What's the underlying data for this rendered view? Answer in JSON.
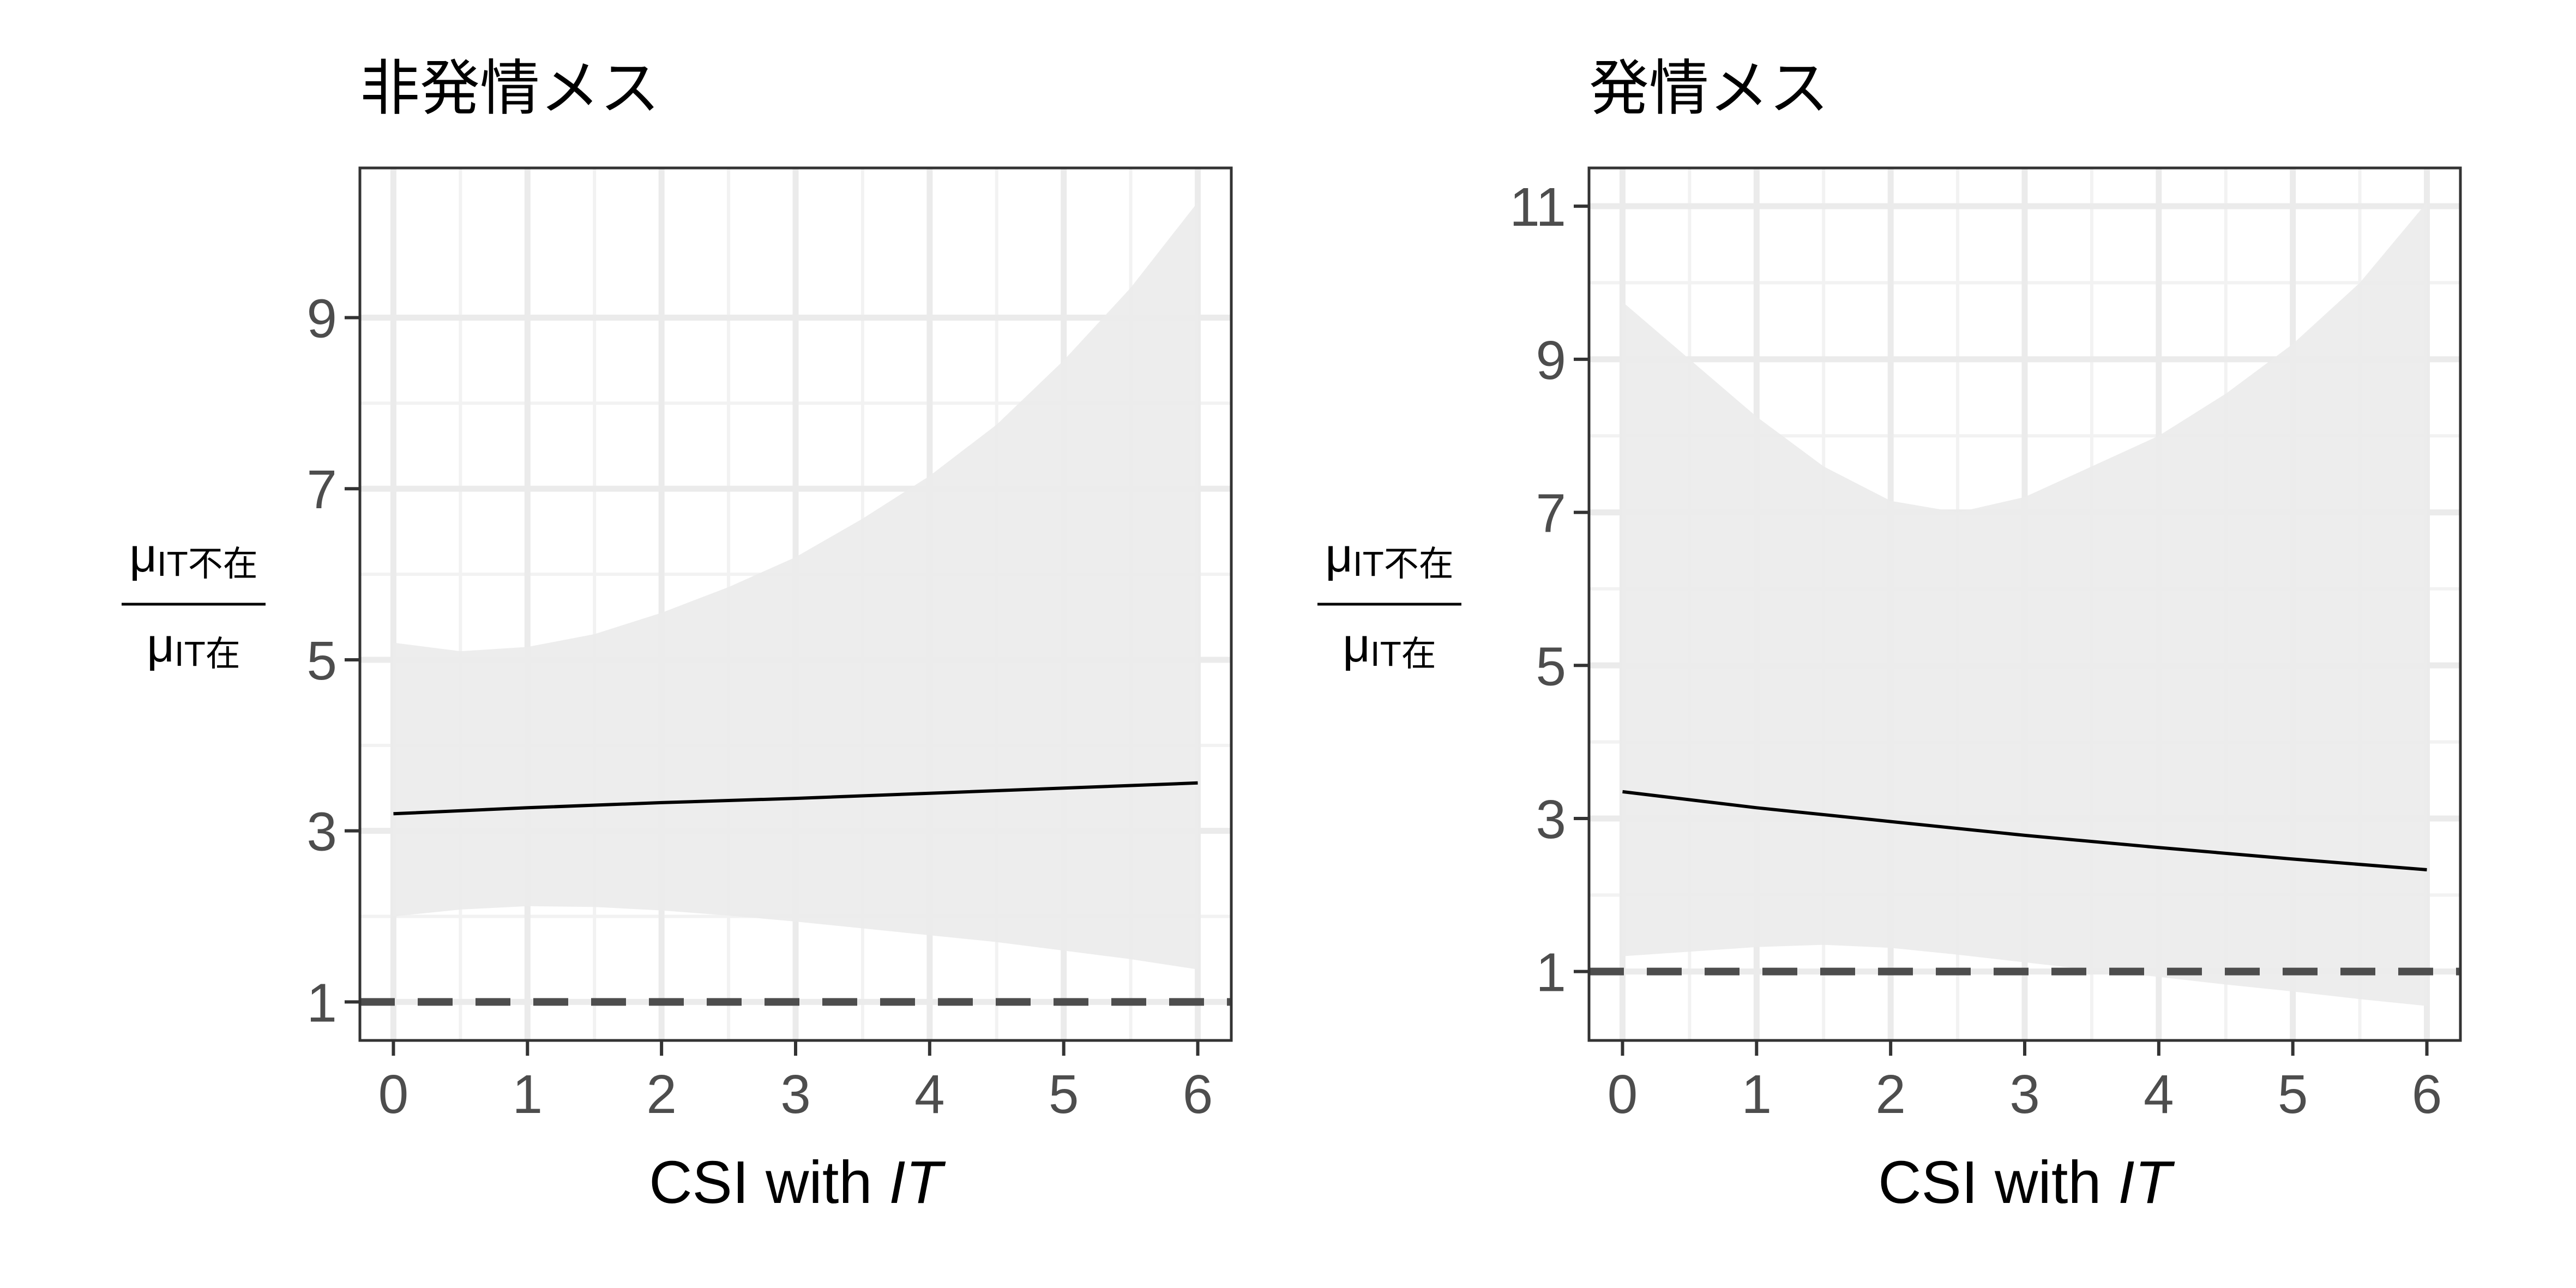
{
  "chart_data": [
    {
      "type": "line",
      "title": "非発情メス",
      "xlabel": "CSI with ",
      "xlabel_italic": "IT",
      "ylabel_numerator_symbol": "μ",
      "ylabel_numerator_subscript": "IT不在",
      "ylabel_denominator_symbol": "μ",
      "ylabel_denominator_subscript": "IT在",
      "xlim": [
        -0.25,
        6.25
      ],
      "ylim": [
        0.55,
        10.75
      ],
      "x_ticks": [
        0,
        1,
        2,
        3,
        4,
        5,
        6
      ],
      "y_ticks": [
        1,
        3,
        5,
        7,
        9
      ],
      "grid": true,
      "reference_line": {
        "y": 1,
        "style": "dashed",
        "color": "#4d4d4d"
      },
      "series": [
        {
          "x": [
            0,
            1,
            2,
            3,
            4,
            5,
            6
          ],
          "y": [
            3.2,
            3.27,
            3.33,
            3.38,
            3.44,
            3.5,
            3.56
          ],
          "color": "#000000"
        }
      ],
      "ribbon": {
        "x": [
          0,
          0.5,
          1,
          1.5,
          2,
          2.5,
          3,
          3.5,
          4,
          4.5,
          5,
          5.5,
          6
        ],
        "upper": [
          5.2,
          5.1,
          5.15,
          5.3,
          5.55,
          5.85,
          6.2,
          6.65,
          7.15,
          7.75,
          8.5,
          9.35,
          10.35
        ],
        "lower": [
          2.0,
          2.08,
          2.12,
          2.11,
          2.07,
          2.01,
          1.94,
          1.86,
          1.78,
          1.7,
          1.6,
          1.5,
          1.38
        ],
        "color": "#ebebeb"
      }
    },
    {
      "type": "line",
      "title": "発情メス",
      "xlabel": "CSI with ",
      "xlabel_italic": "IT",
      "ylabel_numerator_symbol": "μ",
      "ylabel_numerator_subscript": "IT不在",
      "ylabel_denominator_symbol": "μ",
      "ylabel_denominator_subscript": "IT在",
      "xlim": [
        -0.25,
        6.25
      ],
      "ylim": [
        0.1,
        11.5
      ],
      "x_ticks": [
        0,
        1,
        2,
        3,
        4,
        5,
        6
      ],
      "y_ticks": [
        1,
        3,
        5,
        7,
        9,
        11
      ],
      "grid": true,
      "reference_line": {
        "y": 1,
        "style": "dashed",
        "color": "#4d4d4d"
      },
      "series": [
        {
          "x": [
            0,
            1,
            2,
            3,
            4,
            5,
            6
          ],
          "y": [
            3.35,
            3.14,
            2.96,
            2.78,
            2.62,
            2.47,
            2.33
          ],
          "color": "#000000"
        }
      ],
      "ribbon": {
        "x": [
          0,
          0.5,
          1,
          1.5,
          2,
          2.5,
          3,
          3.5,
          4,
          4.5,
          5,
          5.5,
          6
        ],
        "upper": [
          9.75,
          9.0,
          8.25,
          7.6,
          7.15,
          7.0,
          7.2,
          7.6,
          8.0,
          8.55,
          9.2,
          10.0,
          11.05
        ],
        "lower": [
          1.2,
          1.26,
          1.32,
          1.35,
          1.31,
          1.22,
          1.12,
          1.02,
          0.93,
          0.83,
          0.74,
          0.64,
          0.55
        ],
        "color": "#ebebeb"
      }
    }
  ]
}
